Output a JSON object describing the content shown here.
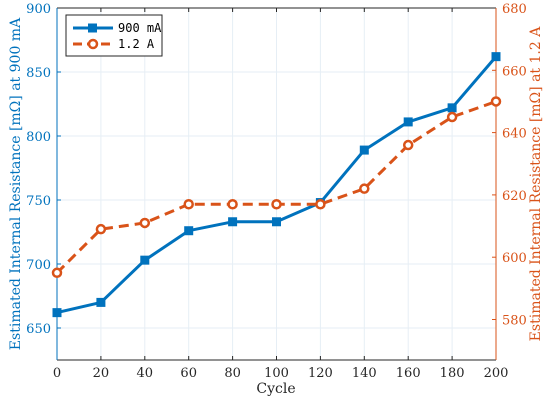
{
  "chart_data": {
    "type": "line",
    "xlabel": "Cycle",
    "ylabel_left": "Estimated Internal Resistance [mΩ] at 900 mA",
    "ylabel_right": "Estimated Internal Resistance [mΩ] at 1.2 A",
    "xlim": [
      0,
      200
    ],
    "ylim_left": [
      625,
      900
    ],
    "ylim_right": [
      567,
      680
    ],
    "x_ticks": [
      0,
      20,
      40,
      60,
      80,
      100,
      120,
      140,
      160,
      180,
      200
    ],
    "y_ticks_left": [
      650,
      700,
      750,
      800,
      850,
      900
    ],
    "y_ticks_right": [
      580,
      600,
      620,
      640,
      660,
      680
    ],
    "grid": true,
    "legend_position": "top-left",
    "series": [
      {
        "name": "900 mA",
        "axis": "left",
        "color": "#0072bd",
        "line_style": "solid",
        "marker": "square",
        "x": [
          0,
          20,
          40,
          60,
          80,
          100,
          120,
          140,
          160,
          180,
          200
        ],
        "values": [
          662,
          670,
          703,
          726,
          733,
          733,
          748,
          789,
          811,
          822,
          862
        ]
      },
      {
        "name": "1.2 A",
        "axis": "right",
        "color": "#d95319",
        "line_style": "dashed",
        "marker": "circle",
        "x": [
          0,
          20,
          40,
          60,
          80,
          100,
          120,
          140,
          160,
          180,
          200
        ],
        "values": [
          595,
          609,
          611,
          617,
          617,
          617,
          617,
          622,
          636,
          645,
          650
        ]
      }
    ]
  }
}
